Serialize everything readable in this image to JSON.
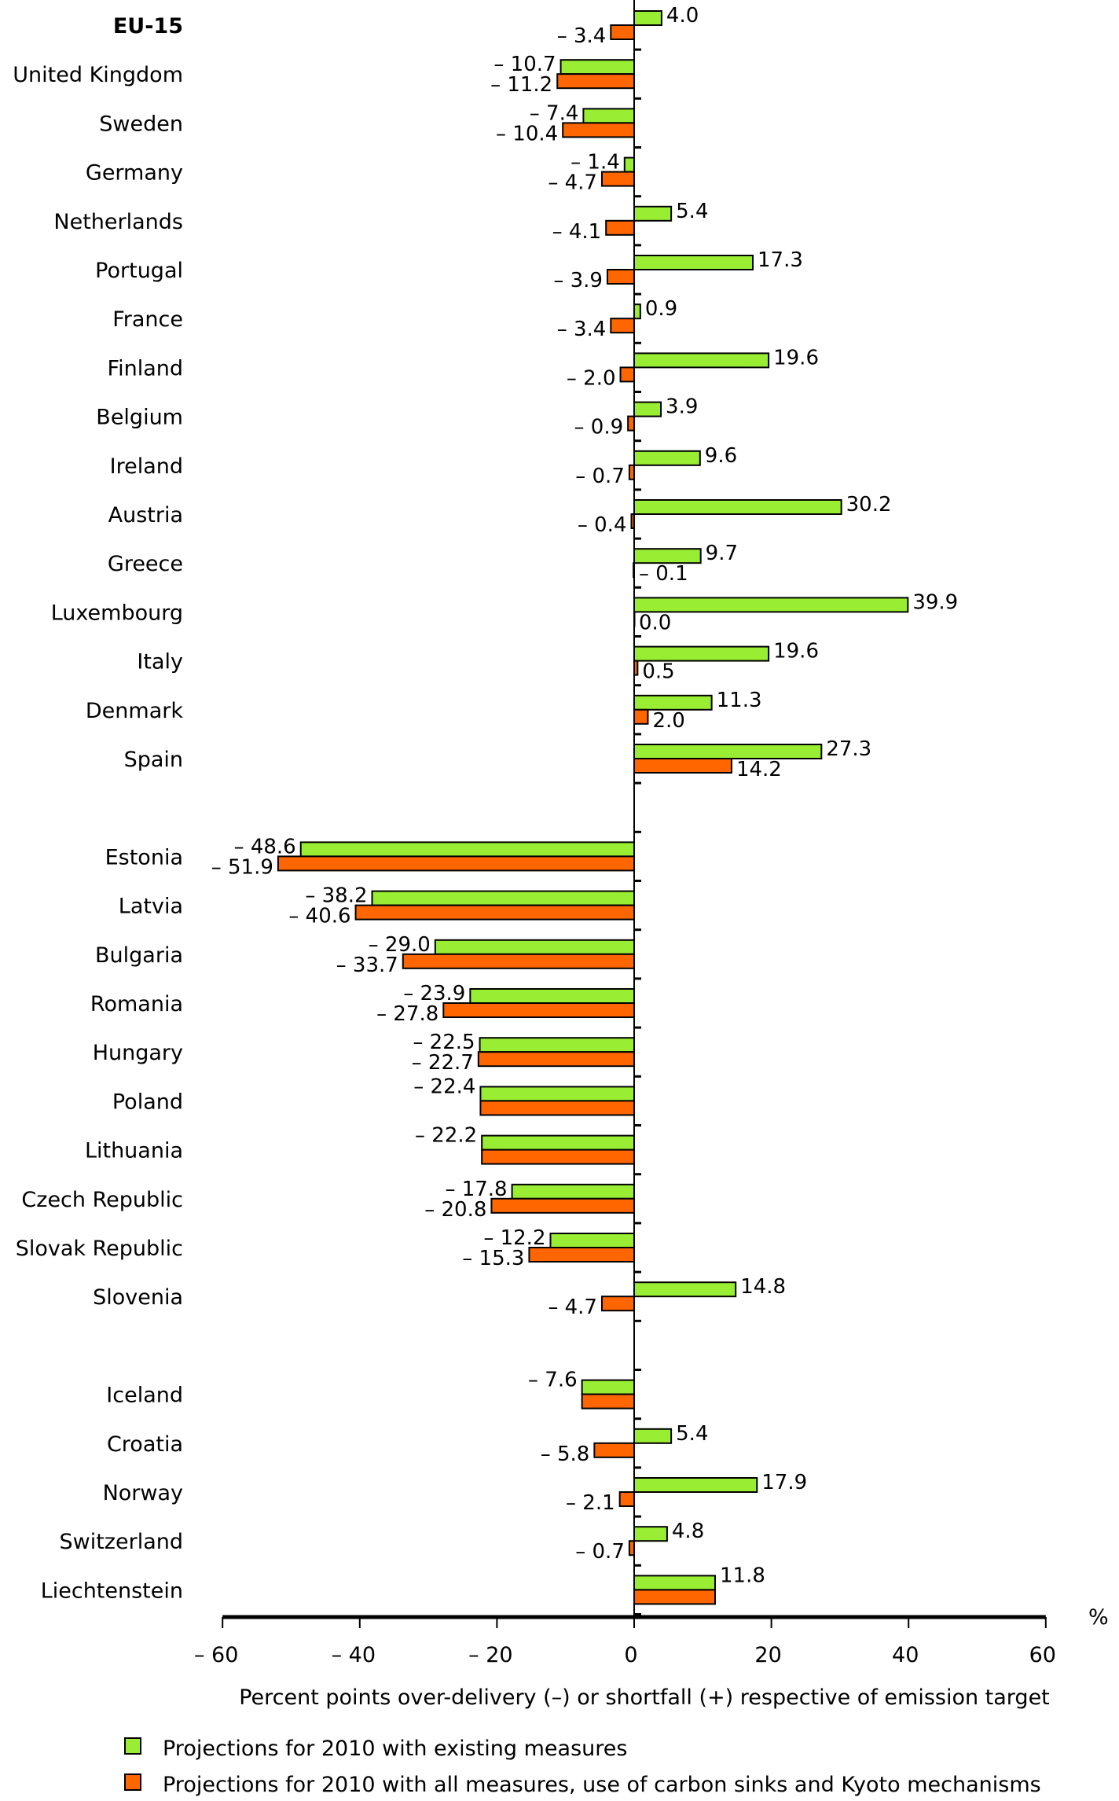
{
  "chart_data": {
    "type": "bar",
    "orientation": "horizontal",
    "xlabel": "Percent points over-delivery (–) or shortfall (+) respective of emission target",
    "unit_label": "%",
    "xlim": [
      -60,
      60
    ],
    "xticks": [
      -60,
      -40,
      -20,
      0,
      20,
      40,
      60
    ],
    "xtick_labels": [
      "– 60",
      "– 40",
      "– 20",
      "0",
      "20",
      "40",
      "60"
    ],
    "colors": {
      "existing": "#99ee33",
      "all": "#ff6600"
    },
    "legend": [
      "Projections for 2010 with existing measures",
      "Projections for 2010 with all measures, use of carbon sinks and Kyoto mechanisms"
    ],
    "legend_placement": "bottom-left",
    "groups": [
      {
        "rows": [
          {
            "country": "EU-15",
            "bold": true,
            "existing": 4.0,
            "all": -3.4
          },
          {
            "country": "United Kingdom",
            "existing": -10.7,
            "all": -11.2
          },
          {
            "country": "Sweden",
            "existing": -7.4,
            "all": -10.4
          },
          {
            "country": "Germany",
            "existing": -1.4,
            "all": -4.7
          },
          {
            "country": "Netherlands",
            "existing": 5.4,
            "all": -4.1
          },
          {
            "country": "Portugal",
            "existing": 17.3,
            "all": -3.9
          },
          {
            "country": "France",
            "existing": 0.9,
            "all": -3.4
          },
          {
            "country": "Finland",
            "existing": 19.6,
            "all": -2.0
          },
          {
            "country": "Belgium",
            "existing": 3.9,
            "all": -0.9
          },
          {
            "country": "Ireland",
            "existing": 9.6,
            "all": -0.7
          },
          {
            "country": "Austria",
            "existing": 30.2,
            "all": -0.4
          },
          {
            "country": "Greece",
            "existing": 9.7,
            "all": -0.1
          },
          {
            "country": "Luxembourg",
            "existing": 39.9,
            "all": 0.0
          },
          {
            "country": "Italy",
            "existing": 19.6,
            "all": 0.5
          },
          {
            "country": "Denmark",
            "existing": 11.3,
            "all": 2.0
          },
          {
            "country": "Spain",
            "existing": 27.3,
            "all": 14.2
          }
        ]
      },
      {
        "rows": [
          {
            "country": "Estonia",
            "existing": -48.6,
            "all": -51.9
          },
          {
            "country": "Latvia",
            "existing": -38.2,
            "all": -40.6
          },
          {
            "country": "Bulgaria",
            "existing": -29.0,
            "all": -33.7
          },
          {
            "country": "Romania",
            "existing": -23.9,
            "all": -27.8
          },
          {
            "country": "Hungary",
            "existing": -22.5,
            "all": -22.7
          },
          {
            "country": "Poland",
            "existing": -22.4,
            "all": -22.4,
            "single_label": true
          },
          {
            "country": "Lithuania",
            "existing": -22.2,
            "all": -22.2,
            "single_label": true
          },
          {
            "country": "Czech Republic",
            "existing": -17.8,
            "all": -20.8
          },
          {
            "country": "Slovak Republic",
            "existing": -12.2,
            "all": -15.3
          },
          {
            "country": "Slovenia",
            "existing": 14.8,
            "all": -4.7
          }
        ]
      },
      {
        "rows": [
          {
            "country": "Iceland",
            "existing": -7.6,
            "all": -7.6,
            "single_label": true
          },
          {
            "country": "Croatia",
            "existing": 5.4,
            "all": -5.8
          },
          {
            "country": "Norway",
            "existing": 17.9,
            "all": -2.1
          },
          {
            "country": "Switzerland",
            "existing": 4.8,
            "all": -0.7
          },
          {
            "country": "Liechtenstein",
            "existing": 11.8,
            "all": 11.8,
            "single_label": true
          }
        ]
      }
    ]
  }
}
